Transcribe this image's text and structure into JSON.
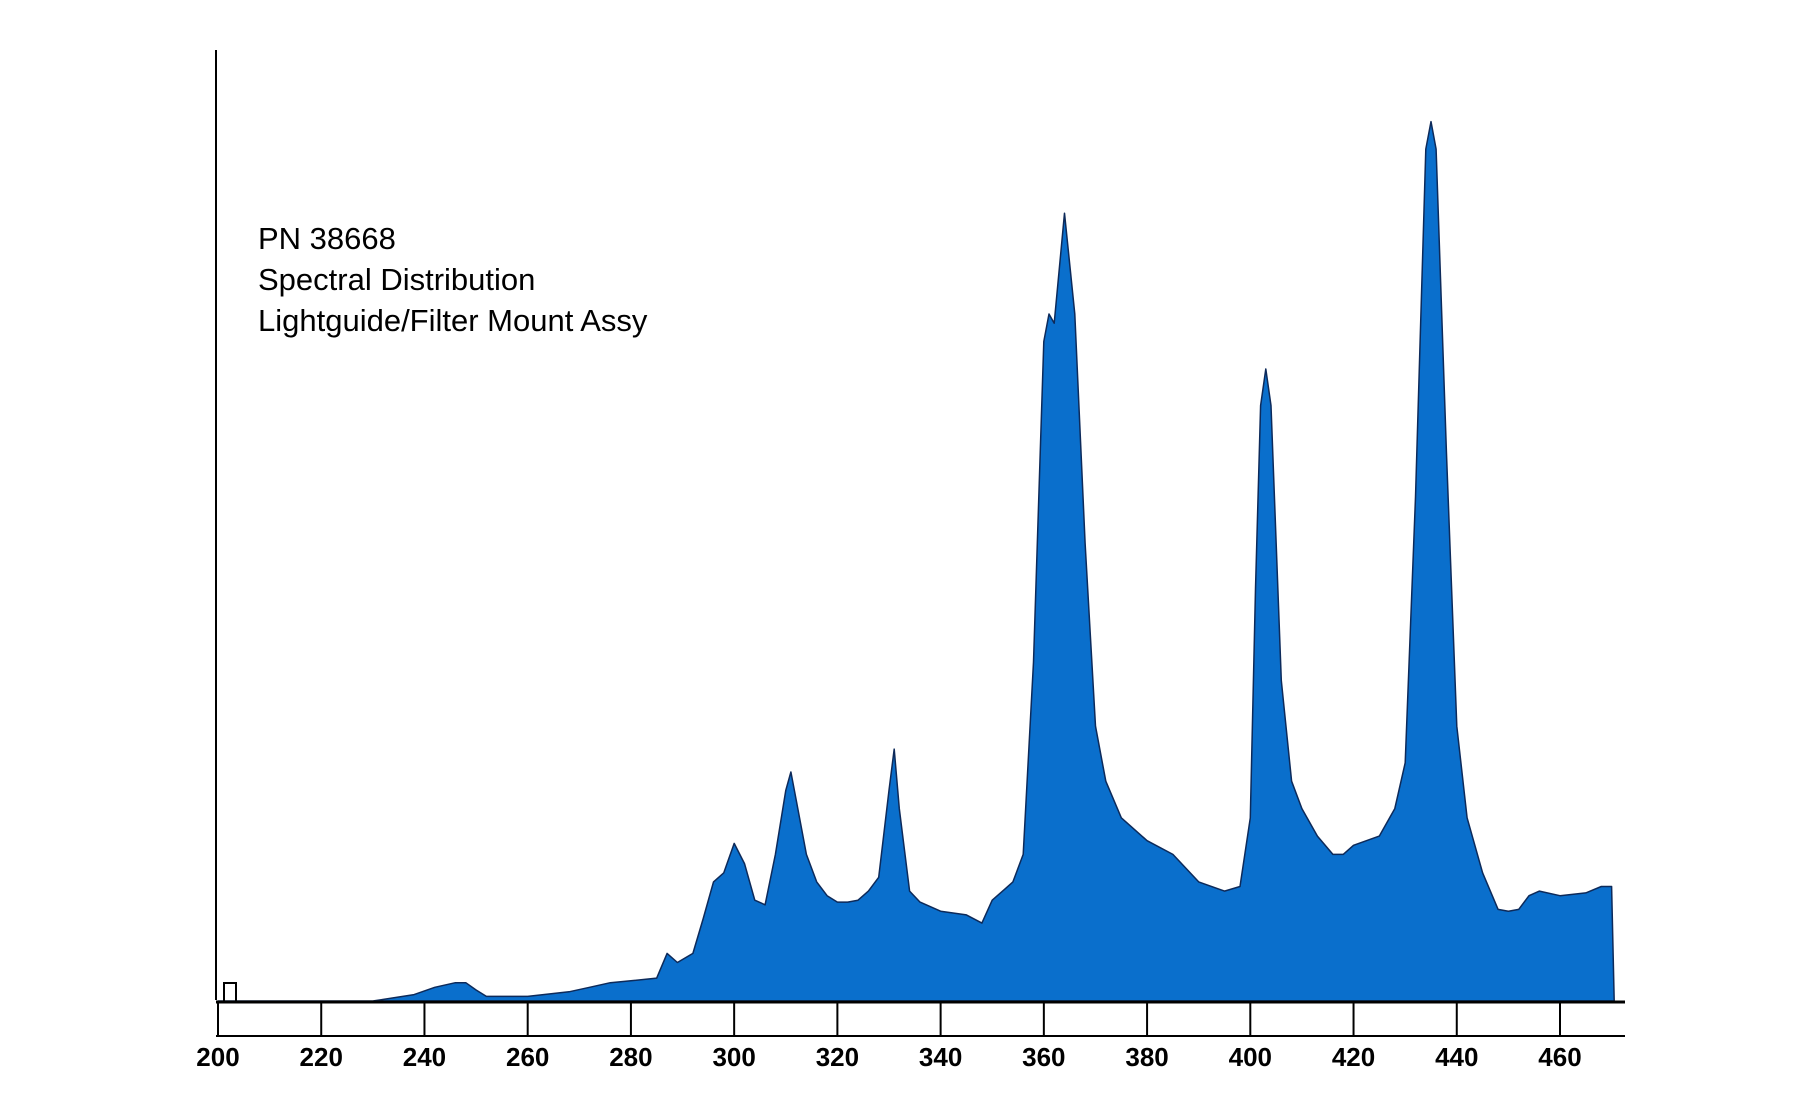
{
  "chart_data": {
    "type": "area",
    "title_lines": [
      "PN 38668",
      "Spectral Distribution",
      "Lightguide/Filter Mount Assy"
    ],
    "xlabel": "",
    "ylabel": "",
    "xlim": [
      200,
      475
    ],
    "ylim": [
      0,
      1.0
    ],
    "x_ticks": [
      200,
      220,
      240,
      260,
      280,
      300,
      320,
      340,
      360,
      380,
      400,
      420,
      440,
      460
    ],
    "grid": false,
    "legend": "none",
    "color": "#0A6FCC",
    "series": [
      {
        "x": [
          200,
          230,
          238,
          242,
          246,
          248,
          250,
          252,
          260,
          268,
          272,
          276,
          280,
          285,
          287,
          289,
          292,
          294,
          296,
          298,
          300,
          302,
          304,
          306,
          308,
          310,
          311,
          312,
          314,
          316,
          318,
          320,
          322,
          324,
          326,
          328,
          330,
          331,
          332,
          334,
          336,
          340,
          345,
          348,
          350,
          352,
          354,
          356,
          358,
          360,
          361,
          362,
          364,
          366,
          368,
          370,
          372,
          375,
          380,
          385,
          390,
          395,
          398,
          400,
          401,
          402,
          403,
          404,
          406,
          408,
          410,
          413,
          416,
          418,
          420,
          425,
          428,
          430,
          432,
          434,
          435,
          436,
          438,
          440,
          442,
          445,
          448,
          450,
          452,
          454,
          456,
          460,
          465,
          468,
          470,
          470.5
        ],
        "y": [
          0,
          0,
          0.007,
          0.015,
          0.02,
          0.02,
          0.012,
          0.005,
          0.005,
          0.01,
          0.015,
          0.02,
          0.022,
          0.025,
          0.052,
          0.042,
          0.052,
          0.09,
          0.13,
          0.14,
          0.172,
          0.15,
          0.11,
          0.105,
          0.16,
          0.23,
          0.25,
          0.22,
          0.16,
          0.13,
          0.115,
          0.108,
          0.108,
          0.11,
          0.12,
          0.135,
          0.23,
          0.275,
          0.21,
          0.12,
          0.108,
          0.098,
          0.094,
          0.085,
          0.11,
          0.12,
          0.13,
          0.16,
          0.37,
          0.72,
          0.75,
          0.74,
          0.86,
          0.75,
          0.5,
          0.3,
          0.24,
          0.2,
          0.175,
          0.16,
          0.13,
          0.12,
          0.125,
          0.2,
          0.45,
          0.65,
          0.69,
          0.65,
          0.35,
          0.24,
          0.21,
          0.18,
          0.16,
          0.16,
          0.17,
          0.18,
          0.21,
          0.26,
          0.55,
          0.93,
          0.96,
          0.93,
          0.6,
          0.3,
          0.2,
          0.14,
          0.1,
          0.098,
          0.1,
          0.115,
          0.12,
          0.115,
          0.118,
          0.125,
          0.125,
          0
        ]
      }
    ]
  }
}
